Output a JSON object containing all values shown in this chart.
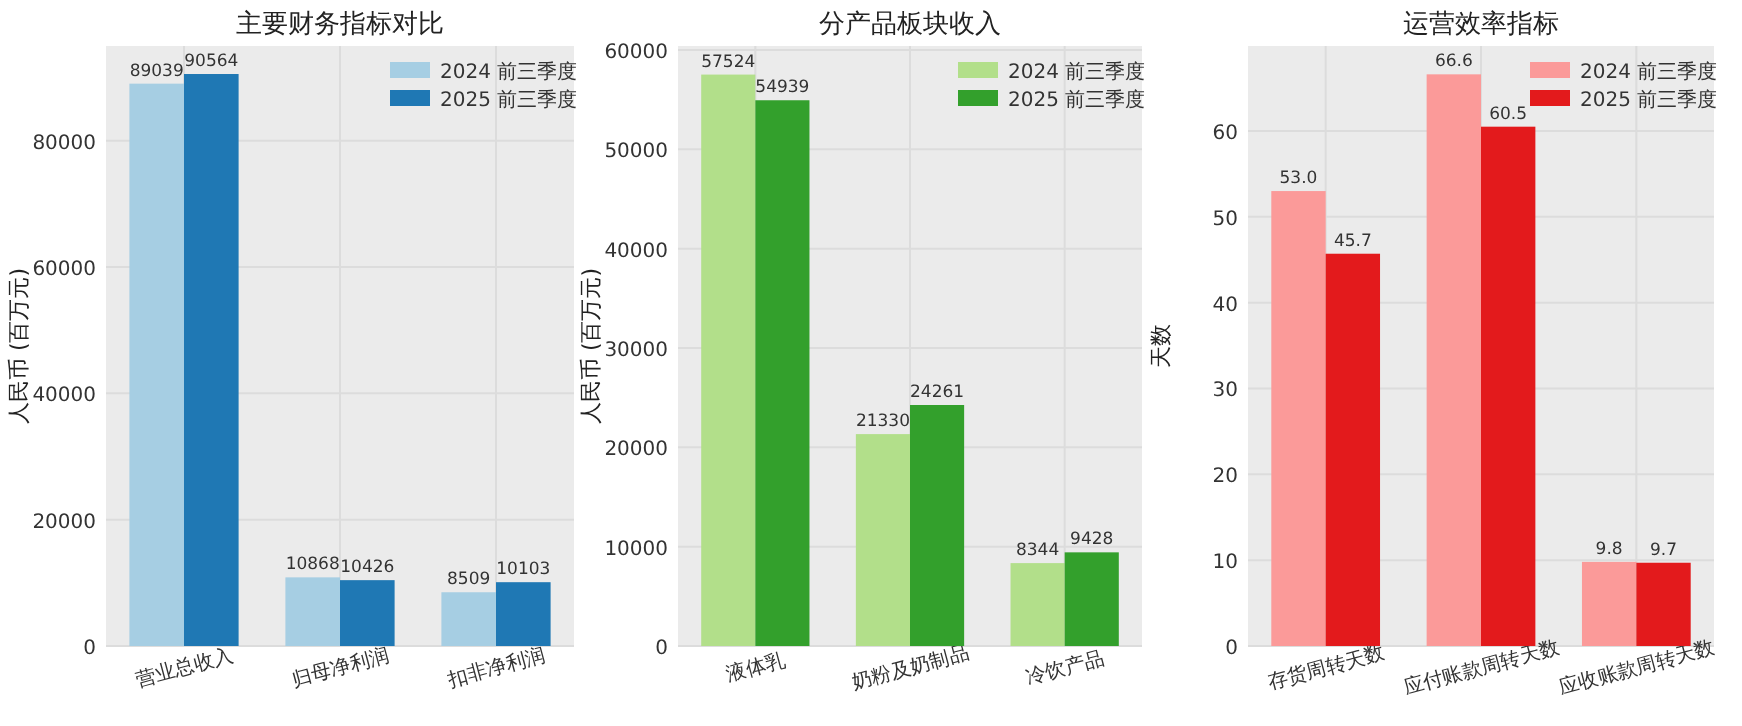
{
  "chart_data": [
    {
      "type": "bar",
      "title": "主要财务指标对比",
      "ylabel": "人民币 (百万元)",
      "categories": [
        "营业总收入",
        "归母净利润",
        "扣非净利润"
      ],
      "series": [
        {
          "name": "2024 前三季度",
          "color": "#a6cee3",
          "values": [
            89039,
            10868,
            8509
          ]
        },
        {
          "name": "2025 前三季度",
          "color": "#1f78b4",
          "values": [
            90564,
            10426,
            10103
          ]
        }
      ],
      "ylim": [
        0,
        95000
      ],
      "yticks": [
        0,
        20000,
        40000,
        60000,
        80000
      ],
      "grid": true,
      "legend": "top right",
      "data_labels": true
    },
    {
      "type": "bar",
      "title": "分产品板块收入",
      "ylabel": "人民币 (百万元)",
      "categories": [
        "液体乳",
        "奶粉及奶制品",
        "冷饮产品"
      ],
      "series": [
        {
          "name": "2024 前三季度",
          "color": "#b2df8a",
          "values": [
            57524,
            21330,
            8344
          ]
        },
        {
          "name": "2025 前三季度",
          "color": "#33a02c",
          "values": [
            54939,
            24261,
            9428
          ]
        }
      ],
      "ylim": [
        0,
        60400
      ],
      "yticks": [
        0,
        10000,
        20000,
        30000,
        40000,
        50000,
        60000
      ],
      "grid": true,
      "legend": "top right",
      "data_labels": true
    },
    {
      "type": "bar",
      "title": "运营效率指标",
      "ylabel": "天数",
      "categories": [
        "存货周转天数",
        "应付账款周转天数",
        "应收账款周转天数"
      ],
      "series": [
        {
          "name": "2024 前三季度",
          "color": "#fb9a99",
          "values": [
            53.0,
            66.6,
            9.8
          ],
          "value_labels": [
            "53.0",
            "66.6",
            "9.8"
          ]
        },
        {
          "name": "2025 前三季度",
          "color": "#e31a1c",
          "values": [
            45.7,
            60.5,
            9.7
          ],
          "value_labels": [
            "45.7",
            "60.5",
            "9.7"
          ]
        }
      ],
      "ylim": [
        0,
        69.9
      ],
      "yticks": [
        0,
        10,
        20,
        30,
        40,
        50,
        60
      ],
      "grid": true,
      "legend": "top right"
    }
  ]
}
